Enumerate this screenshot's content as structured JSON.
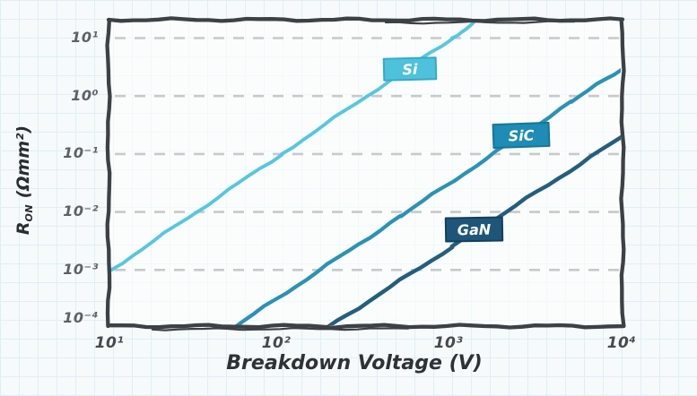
{
  "page": {
    "background_color": "#f6fafb",
    "paper_grid_color": "#e0eff3",
    "frame_color": "#3c4145",
    "gridline_color": "#c7caca",
    "plot_fill": "rgba(255,255,255,0.55)"
  },
  "chart_data": {
    "type": "line",
    "title": "",
    "xlabel": "Breakdown Voltage (V)",
    "ylabel": "R_ON (Ωmm²)",
    "ylabel_parts": {
      "base": "R",
      "subscript": "ON",
      "unit": " (Ωmm²)"
    },
    "x_scale": "log",
    "y_scale": "log",
    "xlim": [
      10,
      10000
    ],
    "ylim": [
      0.0001,
      21
    ],
    "xtick_labels": [
      "10¹",
      "10²",
      "10³",
      "10⁴"
    ],
    "xtick_values": [
      10,
      100,
      1000,
      10000
    ],
    "ytick_labels": [
      "10¹",
      "10⁰",
      "10⁻¹",
      "10⁻²",
      "10⁻³",
      "10⁻⁴"
    ],
    "ytick_values": [
      10,
      1,
      0.1,
      0.01,
      0.001,
      0.0001
    ],
    "grid": "horizontal dashed lines at each y decade",
    "legend_position": "boxed labels placed on each line",
    "series": [
      {
        "name": "Si",
        "label": "Si",
        "line_color": "#56c6e0",
        "box_fill": "#4ec1dc",
        "box_border": "#35aac7",
        "points": [
          [
            10,
            0.001
          ],
          [
            100,
            0.1
          ],
          [
            1000,
            10
          ],
          [
            1450,
            21
          ]
        ]
      },
      {
        "name": "SiC",
        "label": "SiC",
        "line_color": "#2a92b6",
        "box_fill": "#1e8cb4",
        "box_border": "#15769a",
        "points": [
          [
            52,
            0.0001
          ],
          [
            500,
            0.0085
          ],
          [
            5000,
            0.8
          ],
          [
            10000,
            3
          ]
        ]
      },
      {
        "name": "GaN",
        "label": "GaN",
        "line_color": "#235e7d",
        "box_fill": "#1e567a",
        "box_border": "#143f5c",
        "points": [
          [
            185,
            0.0001
          ],
          [
            1000,
            0.0025
          ],
          [
            10000,
            0.2
          ]
        ]
      }
    ]
  }
}
